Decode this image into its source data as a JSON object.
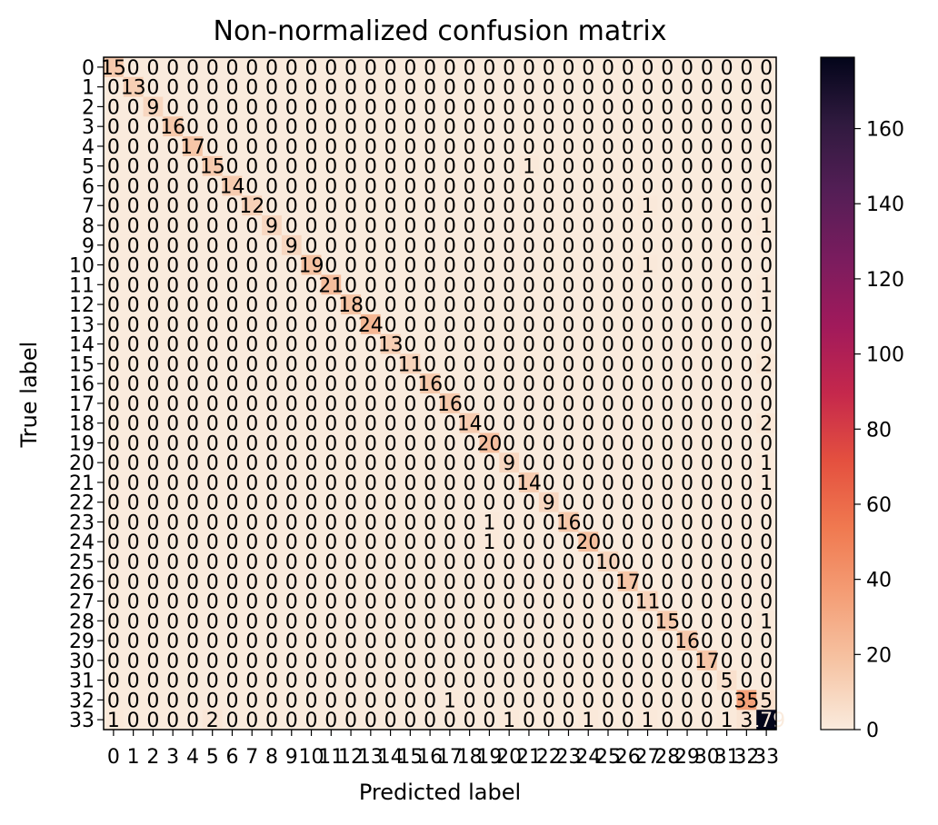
{
  "chart_data": {
    "type": "heatmap",
    "title": "Non-normalized confusion matrix",
    "xlabel": "Predicted label",
    "ylabel": "True label",
    "x_tick_labels": [
      "0",
      "1",
      "2",
      "3",
      "4",
      "5",
      "6",
      "7",
      "8",
      "9",
      "10",
      "11",
      "12",
      "13",
      "14",
      "15",
      "16",
      "17",
      "18",
      "19",
      "20",
      "21",
      "22",
      "23",
      "24",
      "25",
      "26",
      "27",
      "28",
      "29",
      "30",
      "31",
      "32",
      "33"
    ],
    "y_tick_labels": [
      "0",
      "1",
      "2",
      "3",
      "4",
      "5",
      "6",
      "7",
      "8",
      "9",
      "10",
      "11",
      "12",
      "13",
      "14",
      "15",
      "16",
      "17",
      "18",
      "19",
      "20",
      "21",
      "22",
      "23",
      "24",
      "25",
      "26",
      "27",
      "28",
      "29",
      "30",
      "31",
      "32",
      "33"
    ],
    "diagonal": [
      15,
      13,
      9,
      16,
      17,
      15,
      14,
      12,
      9,
      9,
      19,
      21,
      18,
      24,
      13,
      11,
      16,
      16,
      14,
      20,
      9,
      14,
      9,
      16,
      20,
      10,
      17,
      11,
      15,
      16,
      17,
      5,
      35,
      179
    ],
    "off_diagonal": [
      {
        "row": 5,
        "col": 21,
        "value": 1
      },
      {
        "row": 7,
        "col": 27,
        "value": 1
      },
      {
        "row": 8,
        "col": 33,
        "value": 1
      },
      {
        "row": 10,
        "col": 27,
        "value": 1
      },
      {
        "row": 11,
        "col": 33,
        "value": 1
      },
      {
        "row": 12,
        "col": 33,
        "value": 1
      },
      {
        "row": 15,
        "col": 33,
        "value": 2
      },
      {
        "row": 18,
        "col": 33,
        "value": 2
      },
      {
        "row": 20,
        "col": 33,
        "value": 1
      },
      {
        "row": 21,
        "col": 33,
        "value": 1
      },
      {
        "row": 23,
        "col": 19,
        "value": 1
      },
      {
        "row": 24,
        "col": 19,
        "value": 1
      },
      {
        "row": 28,
        "col": 33,
        "value": 1
      },
      {
        "row": 32,
        "col": 17,
        "value": 1
      },
      {
        "row": 32,
        "col": 33,
        "value": 5
      },
      {
        "row": 33,
        "col": 0,
        "value": 1
      },
      {
        "row": 33,
        "col": 5,
        "value": 2
      },
      {
        "row": 33,
        "col": 20,
        "value": 1
      },
      {
        "row": 33,
        "col": 24,
        "value": 1
      },
      {
        "row": 33,
        "col": 27,
        "value": 1
      },
      {
        "row": 33,
        "col": 31,
        "value": 1
      },
      {
        "row": 33,
        "col": 32,
        "value": 3
      }
    ],
    "colorbar": {
      "ticks": [
        0,
        20,
        40,
        60,
        80,
        100,
        120,
        140,
        160
      ],
      "vmin": 0,
      "vmax": 179,
      "colormap": "rocket_r"
    }
  }
}
